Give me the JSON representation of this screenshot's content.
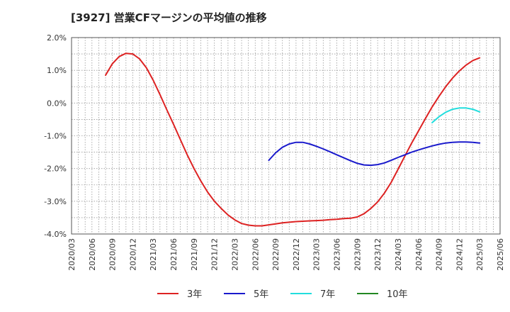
{
  "title": "[3927]  営業CFマージンの平均値の推移",
  "chart_data": {
    "type": "line",
    "title": "[3927]  営業CFマージンの平均値の推移",
    "xlabel": "",
    "ylabel": "",
    "ylim": [
      -4.0,
      2.0
    ],
    "yticks": [
      "2.0%",
      "1.0%",
      "0.0%",
      "-1.0%",
      "-2.0%",
      "-3.0%",
      "-4.0%"
    ],
    "ytick_values": [
      2.0,
      1.0,
      0.0,
      -1.0,
      -2.0,
      -3.0,
      -4.0
    ],
    "xticks": [
      "2020/03",
      "2020/06",
      "2020/09",
      "2020/12",
      "2021/03",
      "2021/06",
      "2021/09",
      "2021/12",
      "2022/03",
      "2022/06",
      "2022/09",
      "2022/12",
      "2023/03",
      "2023/06",
      "2023/09",
      "2023/12",
      "2024/03",
      "2024/06",
      "2024/09",
      "2024/12",
      "2025/03",
      "2025/06"
    ],
    "grid": true,
    "legend_position": "bottom",
    "series": [
      {
        "name": "3年",
        "color": "#dd2222",
        "points": [
          [
            "2020/08",
            0.85
          ],
          [
            "2020/09",
            1.2
          ],
          [
            "2020/10",
            1.42
          ],
          [
            "2020/11",
            1.52
          ],
          [
            "2020/12",
            1.5
          ],
          [
            "2021/01",
            1.35
          ],
          [
            "2021/02",
            1.08
          ],
          [
            "2021/03",
            0.7
          ],
          [
            "2021/04",
            0.26
          ],
          [
            "2021/05",
            -0.2
          ],
          [
            "2021/06",
            -0.65
          ],
          [
            "2021/07",
            -1.12
          ],
          [
            "2021/08",
            -1.58
          ],
          [
            "2021/09",
            -2.0
          ],
          [
            "2021/10",
            -2.38
          ],
          [
            "2021/11",
            -2.72
          ],
          [
            "2021/12",
            -3.0
          ],
          [
            "2022/01",
            -3.22
          ],
          [
            "2022/02",
            -3.42
          ],
          [
            "2022/03",
            -3.57
          ],
          [
            "2022/04",
            -3.68
          ],
          [
            "2022/05",
            -3.73
          ],
          [
            "2022/06",
            -3.75
          ],
          [
            "2022/07",
            -3.75
          ],
          [
            "2022/08",
            -3.72
          ],
          [
            "2022/09",
            -3.69
          ],
          [
            "2022/10",
            -3.66
          ],
          [
            "2022/11",
            -3.64
          ],
          [
            "2022/12",
            -3.62
          ],
          [
            "2023/01",
            -3.61
          ],
          [
            "2023/02",
            -3.6
          ],
          [
            "2023/03",
            -3.59
          ],
          [
            "2023/04",
            -3.58
          ],
          [
            "2023/05",
            -3.56
          ],
          [
            "2023/06",
            -3.55
          ],
          [
            "2023/07",
            -3.53
          ],
          [
            "2023/08",
            -3.52
          ],
          [
            "2023/09",
            -3.48
          ],
          [
            "2023/10",
            -3.38
          ],
          [
            "2023/11",
            -3.22
          ],
          [
            "2023/12",
            -3.02
          ],
          [
            "2024/01",
            -2.75
          ],
          [
            "2024/02",
            -2.42
          ],
          [
            "2024/03",
            -2.02
          ],
          [
            "2024/04",
            -1.62
          ],
          [
            "2024/05",
            -1.22
          ],
          [
            "2024/06",
            -0.85
          ],
          [
            "2024/07",
            -0.48
          ],
          [
            "2024/08",
            -0.12
          ],
          [
            "2024/09",
            0.2
          ],
          [
            "2024/10",
            0.5
          ],
          [
            "2024/11",
            0.76
          ],
          [
            "2024/12",
            0.98
          ],
          [
            "2025/01",
            1.16
          ],
          [
            "2025/02",
            1.3
          ],
          [
            "2025/03",
            1.38
          ]
        ]
      },
      {
        "name": "5年",
        "color": "#1a1acc",
        "points": [
          [
            "2022/08",
            -1.75
          ],
          [
            "2022/09",
            -1.52
          ],
          [
            "2022/10",
            -1.35
          ],
          [
            "2022/11",
            -1.25
          ],
          [
            "2022/12",
            -1.2
          ],
          [
            "2023/01",
            -1.2
          ],
          [
            "2023/02",
            -1.25
          ],
          [
            "2023/03",
            -1.32
          ],
          [
            "2023/04",
            -1.4
          ],
          [
            "2023/05",
            -1.49
          ],
          [
            "2023/06",
            -1.58
          ],
          [
            "2023/07",
            -1.67
          ],
          [
            "2023/08",
            -1.76
          ],
          [
            "2023/09",
            -1.84
          ],
          [
            "2023/10",
            -1.89
          ],
          [
            "2023/11",
            -1.9
          ],
          [
            "2023/12",
            -1.88
          ],
          [
            "2024/01",
            -1.83
          ],
          [
            "2024/02",
            -1.75
          ],
          [
            "2024/03",
            -1.66
          ],
          [
            "2024/04",
            -1.58
          ],
          [
            "2024/05",
            -1.5
          ],
          [
            "2024/06",
            -1.43
          ],
          [
            "2024/07",
            -1.37
          ],
          [
            "2024/08",
            -1.31
          ],
          [
            "2024/09",
            -1.26
          ],
          [
            "2024/10",
            -1.22
          ],
          [
            "2024/11",
            -1.2
          ],
          [
            "2024/12",
            -1.19
          ],
          [
            "2025/01",
            -1.19
          ],
          [
            "2025/02",
            -1.2
          ],
          [
            "2025/03",
            -1.22
          ]
        ]
      },
      {
        "name": "7年",
        "color": "#22dddd",
        "points": [
          [
            "2024/08",
            -0.6
          ],
          [
            "2024/09",
            -0.42
          ],
          [
            "2024/10",
            -0.28
          ],
          [
            "2024/11",
            -0.19
          ],
          [
            "2024/12",
            -0.15
          ],
          [
            "2025/01",
            -0.15
          ],
          [
            "2025/02",
            -0.19
          ],
          [
            "2025/03",
            -0.27
          ]
        ]
      },
      {
        "name": "10年",
        "color": "#228822",
        "points": []
      }
    ]
  }
}
